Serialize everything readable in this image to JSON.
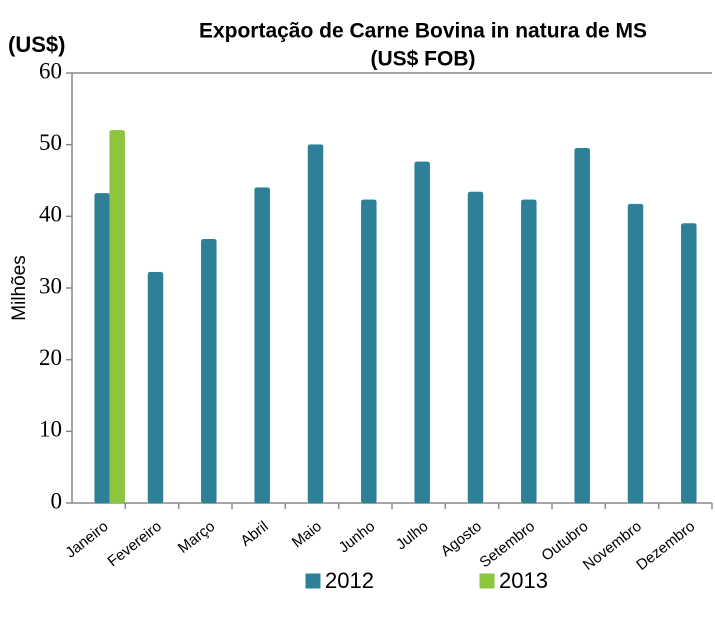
{
  "chart_data": {
    "type": "bar",
    "title": "Exportação de Carne Bovina in natura de MS",
    "subtitle": "(US$ FOB)",
    "unit_label": "(US$)",
    "y_label": "Milhões",
    "categories": [
      "Janeiro",
      "Fevereiro",
      "Março",
      "Abril",
      "Maio",
      "Junho",
      "Julho",
      "Agosto",
      "Setembro",
      "Outubro",
      "Novembro",
      "Dezembro"
    ],
    "series": [
      {
        "name": "2012",
        "color": "#2e8099",
        "values": [
          43.2,
          32.2,
          36.8,
          44,
          50,
          42.3,
          47.6,
          43.4,
          42.3,
          49.5,
          41.7,
          39
        ]
      },
      {
        "name": "2013",
        "color": "#8cc63e",
        "values": [
          52,
          null,
          null,
          null,
          null,
          null,
          null,
          null,
          null,
          null,
          null,
          null
        ]
      }
    ],
    "ylim": [
      0,
      60
    ],
    "yticks": [
      0,
      10,
      20,
      30,
      40,
      50,
      60
    ],
    "grid": false,
    "legend": "bottom"
  }
}
